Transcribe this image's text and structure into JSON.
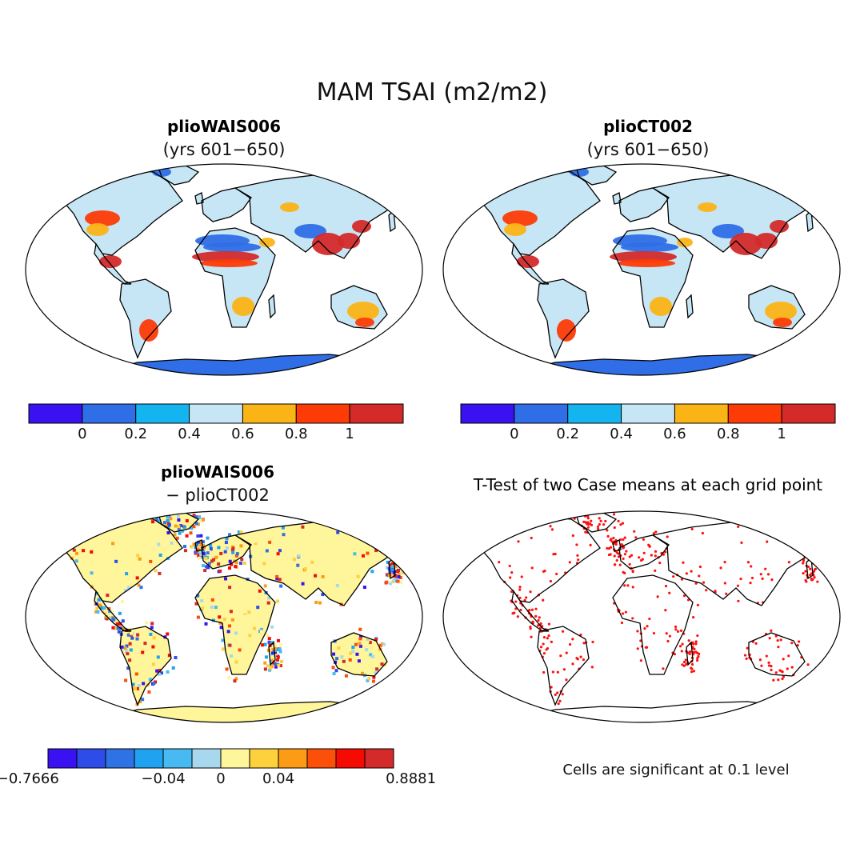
{
  "title": "MAM TSAI (m2/m2)",
  "panels": [
    {
      "name": "plioWAIS006",
      "subtitle": "(yrs 601−650)"
    },
    {
      "name": "plioCT002",
      "subtitle": "(yrs 601−650)"
    },
    {
      "name": "plioWAIS006",
      "subtitle": "− plioCT002"
    },
    {
      "name": "T-Test of two Case means at each grid point",
      "subtitle": ""
    }
  ],
  "colorbars": {
    "absolute": {
      "colors": [
        "#3a12f2",
        "#2f6ee6",
        "#14b4f0",
        "#c6e6f5",
        "#fbb416",
        "#fd3b07",
        "#d42a2a"
      ],
      "labels": [
        "0",
        "0.2",
        "0.4",
        "0.6",
        "0.8",
        "1"
      ]
    },
    "difference": {
      "colors": [
        "#3a12f2",
        "#2e4ce8",
        "#2f72e4",
        "#1fa2ef",
        "#48baf2",
        "#a8d8ee",
        "#fff59a",
        "#fdd13c",
        "#fb9c14",
        "#fc4f07",
        "#f60a04",
        "#d42a2a"
      ],
      "labels": [
        "−0.7666",
        "−0.04",
        "0",
        "0.04",
        "0.8881"
      ]
    }
  },
  "footnote": "Cells are significant at 0.1 level",
  "map_colors": {
    "land_base": "#c6e6f5",
    "diff_base": "#fff59a",
    "significant": "#ff1010",
    "ice": "#2f6ee6",
    "outline": "#000000"
  }
}
